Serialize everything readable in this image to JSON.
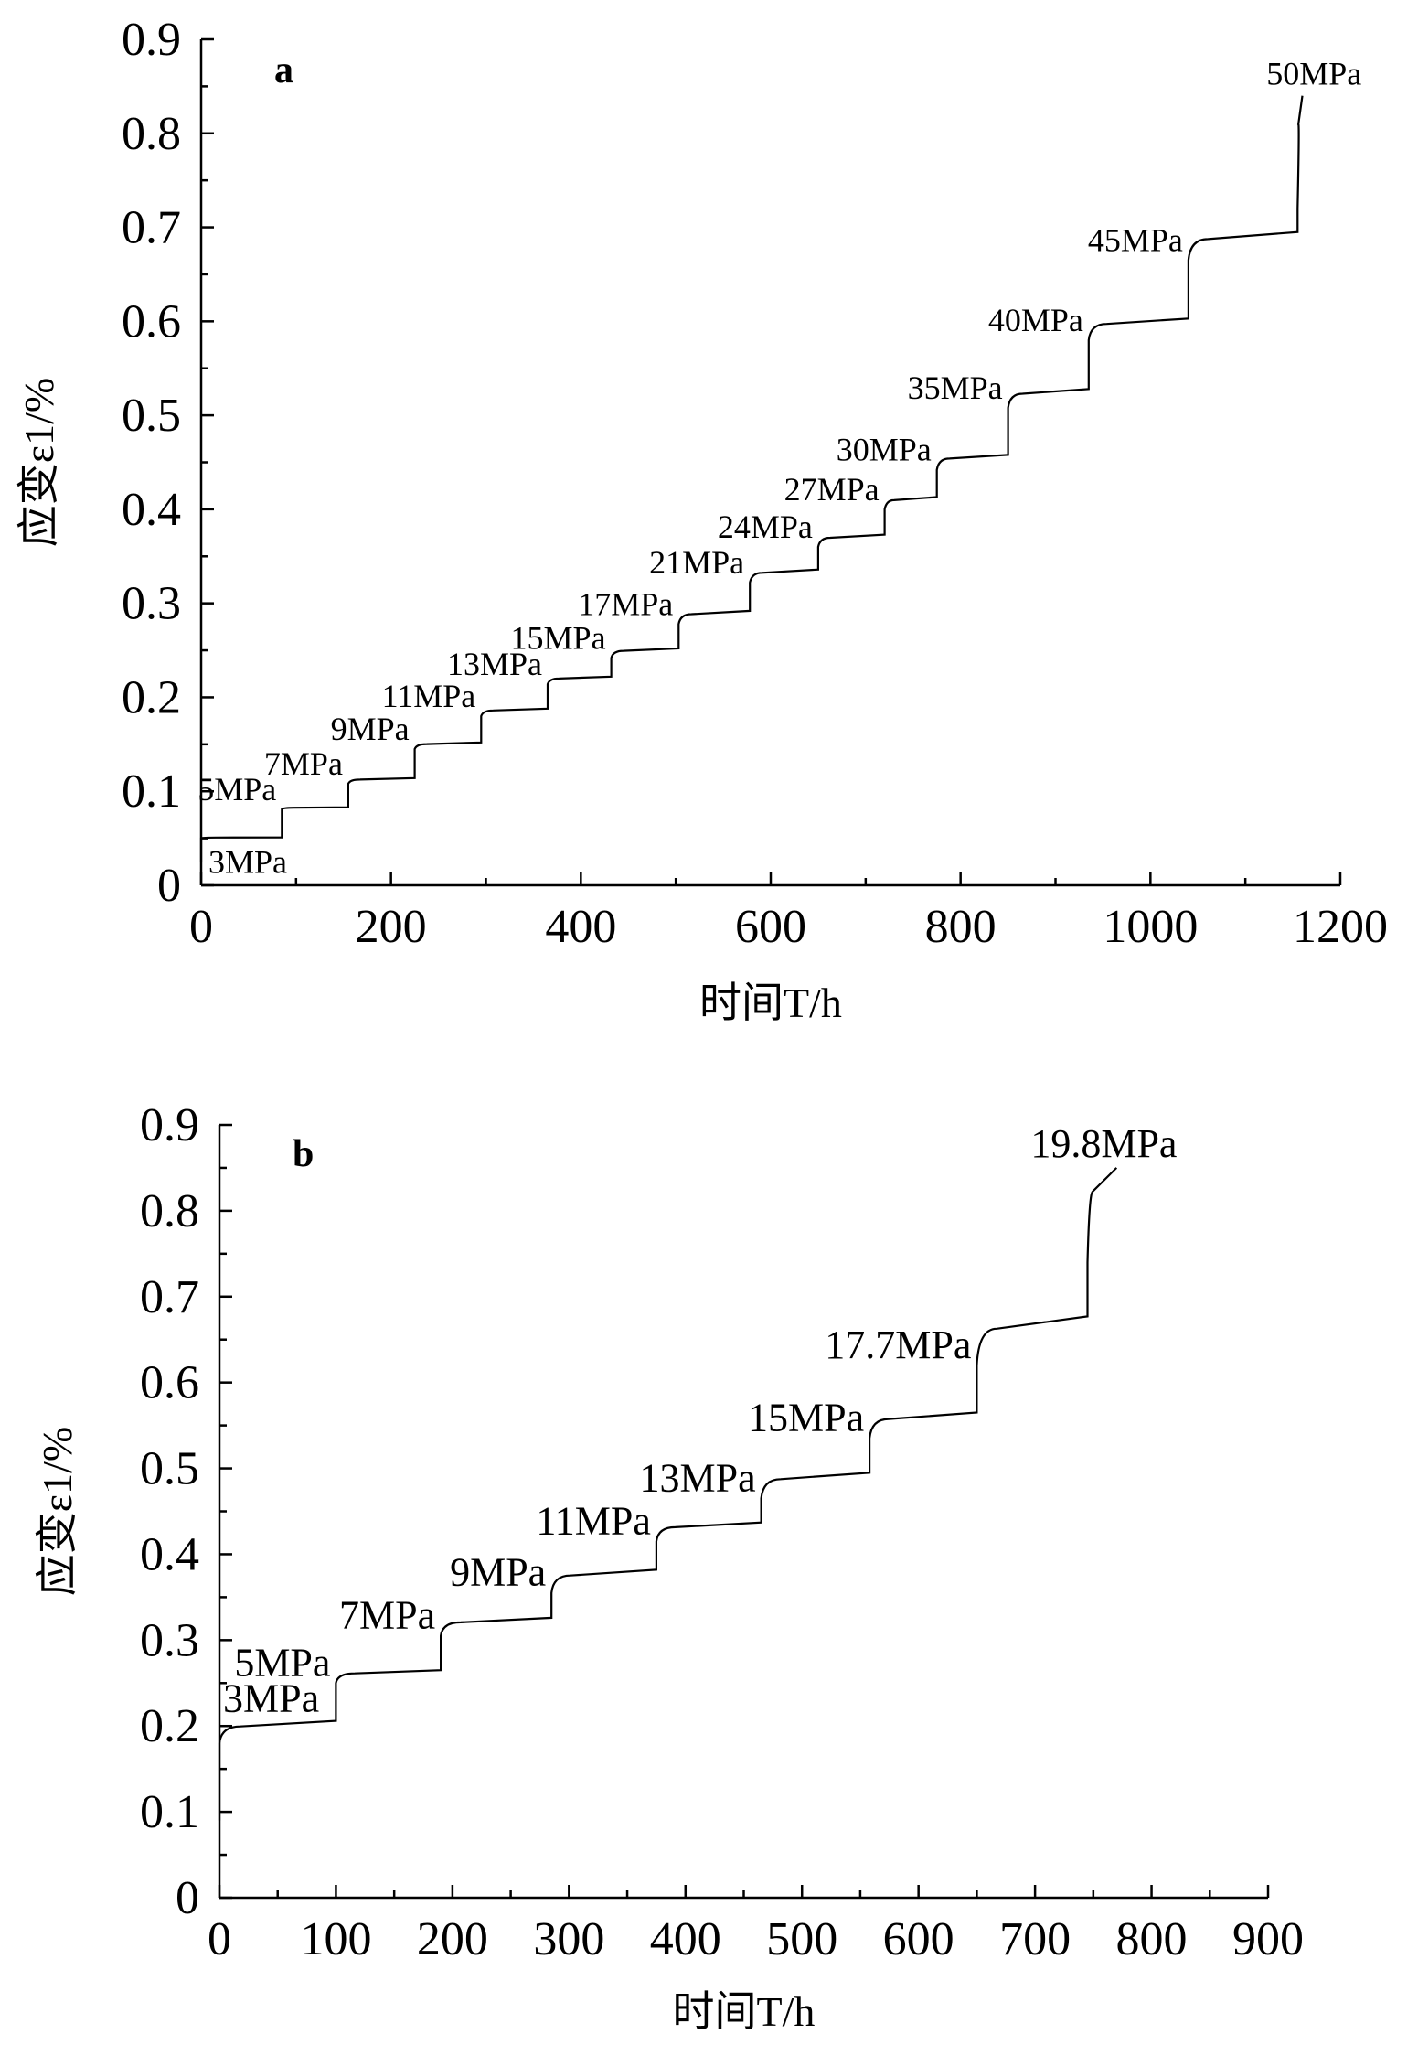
{
  "chart_data": [
    {
      "type": "line",
      "panel_label": "a",
      "xlabel": "时间T/h",
      "ylabel": "应变ε1/%",
      "xlim": [
        0,
        1200
      ],
      "ylim": [
        0,
        0.9
      ],
      "x_ticks": [
        "0",
        "200",
        "400",
        "600",
        "800",
        "1000",
        "1200"
      ],
      "y_ticks": [
        "0",
        "0.1",
        "0.2",
        "0.3",
        "0.4",
        "0.5",
        "0.6",
        "0.7",
        "0.8",
        "0.9"
      ],
      "grid": false,
      "steps": [
        {
          "label": "3MPa",
          "t_start": 0,
          "t_end": 85,
          "strain_start": 0.05,
          "strain_end": 0.051
        },
        {
          "label": "5MPa",
          "t_start": 85,
          "t_end": 155,
          "strain_start": 0.081,
          "strain_end": 0.083
        },
        {
          "label": "7MPa",
          "t_start": 155,
          "t_end": 225,
          "strain_start": 0.108,
          "strain_end": 0.114
        },
        {
          "label": "9MPa",
          "t_start": 225,
          "t_end": 295,
          "strain_start": 0.145,
          "strain_end": 0.152
        },
        {
          "label": "11MPa",
          "t_start": 295,
          "t_end": 365,
          "strain_start": 0.18,
          "strain_end": 0.188
        },
        {
          "label": "13MPa",
          "t_start": 365,
          "t_end": 432,
          "strain_start": 0.214,
          "strain_end": 0.222
        },
        {
          "label": "15MPa",
          "t_start": 432,
          "t_end": 503,
          "strain_start": 0.242,
          "strain_end": 0.252
        },
        {
          "label": "17MPa",
          "t_start": 503,
          "t_end": 578,
          "strain_start": 0.278,
          "strain_end": 0.292
        },
        {
          "label": "21MPa",
          "t_start": 578,
          "t_end": 650,
          "strain_start": 0.322,
          "strain_end": 0.336
        },
        {
          "label": "24MPa",
          "t_start": 650,
          "t_end": 720,
          "strain_start": 0.36,
          "strain_end": 0.373
        },
        {
          "label": "27MPa",
          "t_start": 720,
          "t_end": 775,
          "strain_start": 0.4,
          "strain_end": 0.413
        },
        {
          "label": "30MPa",
          "t_start": 775,
          "t_end": 850,
          "strain_start": 0.442,
          "strain_end": 0.458
        },
        {
          "label": "35MPa",
          "t_start": 850,
          "t_end": 935,
          "strain_start": 0.508,
          "strain_end": 0.528
        },
        {
          "label": "40MPa",
          "t_start": 935,
          "t_end": 1040,
          "strain_start": 0.58,
          "strain_end": 0.603
        },
        {
          "label": "45MPa",
          "t_start": 1040,
          "t_end": 1155,
          "strain_start": 0.665,
          "strain_end": 0.695
        },
        {
          "label": "50MPa",
          "t_start": 1155,
          "t_end": 1160,
          "strain_start": 0.72,
          "strain_end": 0.84
        }
      ]
    },
    {
      "type": "line",
      "panel_label": "b",
      "xlabel": "时间T/h",
      "ylabel": "应变ε1/%",
      "xlim": [
        0,
        900
      ],
      "ylim": [
        0,
        0.9
      ],
      "x_ticks": [
        "0",
        "100",
        "200",
        "300",
        "400",
        "500",
        "600",
        "700",
        "800",
        "900"
      ],
      "y_ticks": [
        "0",
        "0.1",
        "0.2",
        "0.3",
        "0.4",
        "0.5",
        "0.6",
        "0.7",
        "0.8",
        "0.9"
      ],
      "grid": false,
      "steps": [
        {
          "label": "3MPa",
          "t_start": 0,
          "t_end": 100,
          "strain_start": 0.18,
          "strain_end": 0.206
        },
        {
          "label": "5MPa",
          "t_start": 100,
          "t_end": 190,
          "strain_start": 0.25,
          "strain_end": 0.265
        },
        {
          "label": "7MPa",
          "t_start": 190,
          "t_end": 285,
          "strain_start": 0.305,
          "strain_end": 0.326
        },
        {
          "label": "9MPa",
          "t_start": 285,
          "t_end": 375,
          "strain_start": 0.355,
          "strain_end": 0.382
        },
        {
          "label": "11MPa",
          "t_start": 375,
          "t_end": 465,
          "strain_start": 0.415,
          "strain_end": 0.437
        },
        {
          "label": "13MPa",
          "t_start": 465,
          "t_end": 558,
          "strain_start": 0.465,
          "strain_end": 0.495
        },
        {
          "label": "15MPa",
          "t_start": 558,
          "t_end": 650,
          "strain_start": 0.535,
          "strain_end": 0.565
        },
        {
          "label": "17.7MPa",
          "t_start": 650,
          "t_end": 745,
          "strain_start": 0.62,
          "strain_end": 0.677
        },
        {
          "label": "19.8MPa",
          "t_start": 745,
          "t_end": 770,
          "strain_start": 0.74,
          "strain_end": 0.85
        }
      ]
    }
  ]
}
